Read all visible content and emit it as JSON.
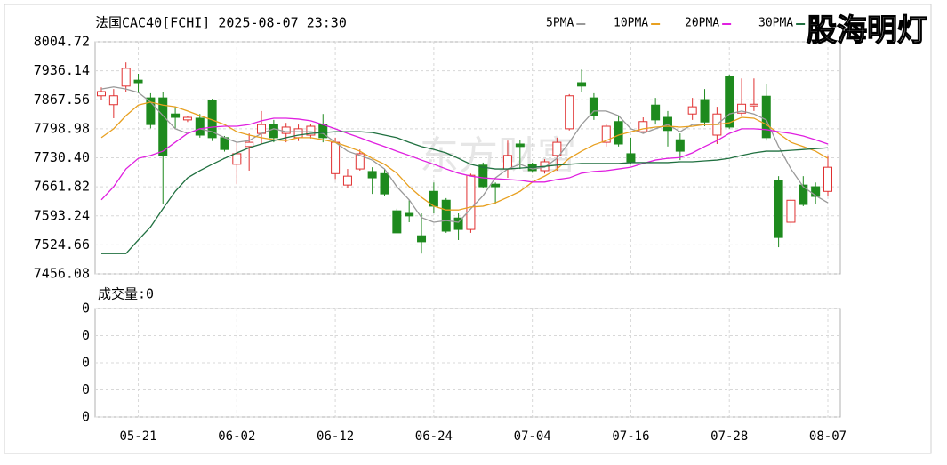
{
  "chart_data": {
    "type": "candlestick",
    "title": "法国CAC40[FCHI] 2025-08-07 23:30",
    "logo": "股海明灯",
    "watermark": "东方财富",
    "up_color": "#e03030",
    "down_color": "#1e8a1e",
    "categories": [
      null,
      null,
      null,
      "05-21",
      null,
      null,
      null,
      null,
      null,
      null,
      null,
      "06-02",
      null,
      null,
      null,
      null,
      null,
      null,
      null,
      "06-12",
      null,
      null,
      null,
      null,
      null,
      null,
      null,
      "06-24",
      null,
      null,
      null,
      null,
      null,
      null,
      null,
      "07-04",
      null,
      null,
      null,
      null,
      null,
      null,
      null,
      "07-16",
      null,
      null,
      null,
      null,
      null,
      null,
      null,
      "07-28",
      null,
      null,
      null,
      null,
      null,
      null,
      null,
      "08-07"
    ],
    "open": [
      7877,
      7856,
      7900,
      7914,
      7872,
      7872,
      7834,
      7820,
      7824,
      7866,
      7778,
      7715,
      7757,
      7788,
      7809,
      7788,
      7778,
      7784,
      7809,
      7693,
      7666,
      7704,
      7698,
      7693,
      7605,
      7599,
      7546,
      7651,
      7630,
      7588,
      7561,
      7713,
      7668,
      7704,
      7763,
      7715,
      7700,
      7736,
      7799,
      7908,
      7872,
      7767,
      7816,
      7740,
      7792,
      7855,
      7826,
      7773,
      7834,
      7868,
      7784,
      7923,
      7836,
      7853,
      7876,
      7677,
      7578,
      7666,
      7662,
      7651
    ],
    "high": [
      7897,
      7893,
      7956,
      7929,
      7883,
      7887,
      7851,
      7830,
      7834,
      7870,
      7782,
      7767,
      7788,
      7841,
      7820,
      7813,
      7809,
      7811,
      7834,
      7778,
      7704,
      7750,
      7708,
      7704,
      7610,
      7630,
      7599,
      7672,
      7635,
      7599,
      7693,
      7719,
      7672,
      7771,
      7773,
      7719,
      7727,
      7778,
      7881,
      7939,
      7883,
      7811,
      7830,
      7778,
      7826,
      7872,
      7841,
      7788,
      7872,
      7893,
      7851,
      7927,
      7918,
      7918,
      7904,
      7687,
      7641,
      7687,
      7672,
      7736
    ],
    "low": [
      7866,
      7824,
      7885,
      7883,
      7800,
      7620,
      7798,
      7815,
      7778,
      7770,
      7745,
      7668,
      7700,
      7763,
      7767,
      7767,
      7770,
      7776,
      7767,
      7680,
      7658,
      7700,
      7645,
      7641,
      7553,
      7578,
      7504,
      7599,
      7553,
      7536,
      7553,
      7658,
      7620,
      7683,
      7704,
      7695,
      7693,
      7700,
      7795,
      7887,
      7820,
      7757,
      7757,
      7715,
      7788,
      7809,
      7757,
      7725,
      7820,
      7805,
      7763,
      7799,
      7830,
      7841,
      7771,
      7519,
      7567,
      7616,
      7620,
      7641
    ],
    "close": [
      7887,
      7877,
      7942,
      7908,
      7809,
      7736,
      7826,
      7826,
      7784,
      7778,
      7750,
      7740,
      7767,
      7809,
      7778,
      7803,
      7799,
      7805,
      7778,
      7767,
      7687,
      7740,
      7683,
      7645,
      7553,
      7593,
      7532,
      7616,
      7557,
      7561,
      7689,
      7662,
      7662,
      7736,
      7757,
      7700,
      7721,
      7767,
      7877,
      7900,
      7830,
      7805,
      7763,
      7721,
      7816,
      7820,
      7795,
      7746,
      7851,
      7815,
      7834,
      7803,
      7857,
      7857,
      7778,
      7542,
      7630,
      7620,
      7639,
      7708
    ],
    "series": [
      {
        "name": "5PMA",
        "color": "#999999",
        "values": [
          7893,
          7898,
          7893,
          7885,
          7862,
          7830,
          7799,
          7788,
          7799,
          7792,
          7778,
          7767,
          7771,
          7788,
          7799,
          7792,
          7792,
          7792,
          7788,
          7767,
          7746,
          7736,
          7725,
          7704,
          7662,
          7631,
          7589,
          7578,
          7582,
          7578,
          7610,
          7641,
          7683,
          7704,
          7715,
          7704,
          7708,
          7729,
          7767,
          7809,
          7841,
          7841,
          7830,
          7799,
          7788,
          7799,
          7809,
          7792,
          7809,
          7809,
          7809,
          7834,
          7841,
          7834,
          7820,
          7757,
          7704,
          7662,
          7641,
          7624
        ]
      },
      {
        "name": "10PMA",
        "color": "#e8a020",
        "values": [
          7778,
          7799,
          7830,
          7855,
          7862,
          7855,
          7851,
          7841,
          7830,
          7820,
          7809,
          7792,
          7784,
          7778,
          7773,
          7771,
          7778,
          7778,
          7773,
          7767,
          7757,
          7746,
          7729,
          7715,
          7694,
          7662,
          7637,
          7616,
          7607,
          7607,
          7614,
          7616,
          7624,
          7637,
          7651,
          7673,
          7687,
          7704,
          7729,
          7746,
          7761,
          7771,
          7784,
          7792,
          7799,
          7803,
          7805,
          7803,
          7805,
          7809,
          7809,
          7813,
          7826,
          7824,
          7809,
          7788,
          7767,
          7757,
          7746,
          7729
        ]
      },
      {
        "name": "20PMA",
        "color": "#e020e0",
        "values": [
          7631,
          7662,
          7704,
          7729,
          7736,
          7746,
          7767,
          7788,
          7799,
          7803,
          7805,
          7805,
          7809,
          7818,
          7824,
          7824,
          7822,
          7818,
          7809,
          7799,
          7788,
          7778,
          7767,
          7757,
          7746,
          7736,
          7725,
          7715,
          7704,
          7694,
          7687,
          7683,
          7681,
          7679,
          7677,
          7673,
          7673,
          7679,
          7683,
          7694,
          7698,
          7700,
          7704,
          7708,
          7717,
          7725,
          7729,
          7731,
          7742,
          7757,
          7771,
          7788,
          7799,
          7799,
          7797,
          7792,
          7788,
          7782,
          7773,
          7763
        ]
      },
      {
        "name": "30PMA",
        "color": "#207040",
        "values": [
          7504,
          7504,
          7504,
          7536,
          7567,
          7610,
          7651,
          7683,
          7700,
          7715,
          7729,
          7742,
          7754,
          7763,
          7771,
          7778,
          7784,
          7788,
          7790,
          7792,
          7792,
          7792,
          7790,
          7784,
          7778,
          7767,
          7757,
          7750,
          7742,
          7729,
          7715,
          7708,
          7704,
          7704,
          7706,
          7708,
          7710,
          7713,
          7715,
          7717,
          7717,
          7717,
          7717,
          7719,
          7719,
          7719,
          7719,
          7721,
          7721,
          7723,
          7725,
          7729,
          7736,
          7742,
          7746,
          7746,
          7748,
          7750,
          7752,
          7754
        ]
      }
    ],
    "ylim": [
      7456.08,
      8004.72
    ],
    "yticks": [
      7456.08,
      7524.66,
      7593.24,
      7661.82,
      {
        "value": 7730.4,
        "label": "7730.40"
      },
      7798.98,
      7867.56,
      7936.14,
      8004.72
    ],
    "grid": true,
    "volume_label": "成交量:0",
    "volume_ticks": [
      "0",
      "0",
      "0",
      "0",
      "0"
    ]
  }
}
